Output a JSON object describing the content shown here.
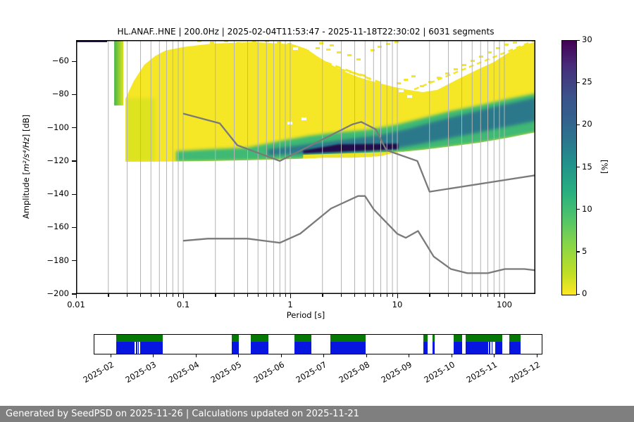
{
  "title": "HL.ANAF..HNE | 200.0Hz | 2025-02-04T11:53:47 - 2025-11-18T22:30:02 | 6031 segments",
  "station": {
    "stream_id": "HL.ANAF..HNE",
    "sampling_rate": "200.0Hz",
    "start_time": "2025-02-04T11:53:47",
    "end_time": "2025-11-18T22:30:02",
    "segments_count": "6031 segments"
  },
  "axes": {
    "x": {
      "label": "Period [s]",
      "scale": "log",
      "tick_values": [
        0.01,
        0.1,
        1,
        10,
        100
      ],
      "tick_labels": [
        "0.01",
        "0.1",
        "1",
        "10",
        "100"
      ],
      "range": [
        0.01,
        195
      ]
    },
    "y": {
      "label_prefix": "Amplitude [",
      "label_math": "m²/s⁴/Hz",
      "label_suffix": "] [dB]",
      "tick_values": [
        -60,
        -80,
        -100,
        -120,
        -140,
        -160,
        -180,
        -200
      ],
      "tick_labels": [
        "−60",
        "−80",
        "−100",
        "−120",
        "−140",
        "−160",
        "−180",
        "−200"
      ],
      "range": [
        -200,
        -47
      ]
    }
  },
  "colorbar": {
    "unit": "[%]",
    "min": 0,
    "max": 30,
    "colormap": "viridis_r",
    "tick_values": [
      0,
      5,
      10,
      15,
      20,
      25,
      30
    ],
    "tick_labels": [
      "0",
      "5",
      "10",
      "15",
      "20",
      "25",
      "30"
    ]
  },
  "colors": {
    "heat_yellow": "#f5e626",
    "heat_lightgreen": "#cfe11d",
    "heat_green": "#35b779",
    "heat_teal": "#2c728e",
    "heat_core": "#23094c",
    "stripe_green": "#45b649",
    "noise_model_gray": "#7a7a7a",
    "grid_gray": "#b3b3b3",
    "timeline_green": "#067806",
    "timeline_blue": "#0715e0",
    "footer_gray": "#7f7f7f"
  },
  "chart_data": {
    "type": "heatmap",
    "title": "HL.ANAF..HNE | 200.0Hz | 2025-02-04T11:53:47 - 2025-11-18T22:30:02 | 6031 segments",
    "xlabel": "Period [s]",
    "ylabel": "Amplitude [m²/s⁴/Hz] [dB]",
    "x_scale": "log",
    "xlim": [
      0.01,
      195
    ],
    "ylim": [
      -200,
      -47
    ],
    "colorbar": {
      "label": "[%]",
      "min": 0,
      "max": 30,
      "ticks": [
        0,
        5,
        10,
        15,
        20,
        25,
        30
      ]
    },
    "grid": "vertical-log-minor-and-major",
    "density": {
      "description": "PPSD probability density: broad low-probability (yellow, <5%) field between roughly -47 and -120 dB; probability increases (green to teal) in a band that follows the lower envelope, peaking (dark purple, ~30%) near periods 1.3-10 s at about -110 to -115 dB; distribution envelope rises toward shorter and longer periods.",
      "upper_edge": [
        [
          0.0289,
          -82.4
        ],
        [
          0.0347,
          -71.8
        ],
        [
          0.0434,
          -62.1
        ],
        [
          0.0544,
          -57.0
        ],
        [
          0.0682,
          -53.6
        ],
        [
          0.1,
          -51.5
        ],
        [
          0.184,
          -49.4
        ],
        [
          0.455,
          -48.5
        ],
        [
          1.06,
          -49.8
        ],
        [
          1.43,
          -52.7
        ],
        [
          1.78,
          -57.0
        ],
        [
          2.41,
          -62.1
        ],
        [
          3.23,
          -66.3
        ],
        [
          4.41,
          -69.7
        ],
        [
          5.95,
          -72.2
        ],
        [
          9.43,
          -75.6
        ],
        [
          12.8,
          -77.3
        ],
        [
          17.3,
          -78.6
        ],
        [
          23.5,
          -77.3
        ],
        [
          37.3,
          -70.6
        ],
        [
          54.6,
          -65.4
        ],
        [
          80.1,
          -60.4
        ],
        [
          117,
          -53.6
        ],
        [
          159,
          -49.8
        ],
        [
          196,
          -48.5
        ]
      ],
      "lower_edge": [
        [
          0.0289,
          -120.5
        ],
        [
          0.086,
          -120.3
        ],
        [
          0.184,
          -120.0
        ],
        [
          0.392,
          -119.6
        ],
        [
          0.617,
          -119.2
        ],
        [
          1.13,
          -118.8
        ],
        [
          2.07,
          -118.0
        ],
        [
          3.81,
          -118.0
        ],
        [
          6.94,
          -117.1
        ],
        [
          9.43,
          -115.0
        ],
        [
          17.3,
          -113.3
        ],
        [
          31.7,
          -111.2
        ],
        [
          58.3,
          -109.0
        ],
        [
          107,
          -106.1
        ],
        [
          196,
          -102.7
        ]
      ],
      "green_band_upper": [
        [
          0.086,
          -114.1
        ],
        [
          0.184,
          -112.9
        ],
        [
          0.392,
          -112.0
        ],
        [
          0.836,
          -107.8
        ],
        [
          1.53,
          -104.8
        ],
        [
          2.81,
          -102.7
        ],
        [
          5.13,
          -101.4
        ],
        [
          9.43,
          -98.5
        ],
        [
          17.3,
          -94.2
        ],
        [
          31.7,
          -90.0
        ],
        [
          58.3,
          -86.6
        ],
        [
          107,
          -82.8
        ],
        [
          196,
          -79.4
        ]
      ],
      "green_band_lower": [
        [
          196,
          -102.7
        ],
        [
          107,
          -106.1
        ],
        [
          58.3,
          -109.0
        ],
        [
          31.7,
          -111.2
        ],
        [
          17.3,
          -113.3
        ],
        [
          9.43,
          -115.0
        ],
        [
          6.94,
          -117.1
        ],
        [
          3.81,
          -118.0
        ],
        [
          2.07,
          -118.0
        ],
        [
          1.13,
          -118.8
        ],
        [
          0.617,
          -119.2
        ],
        [
          0.392,
          -119.6
        ],
        [
          0.184,
          -120.0
        ],
        [
          0.086,
          -120.3
        ]
      ],
      "teal_band_upper": [
        [
          0.617,
          -112.9
        ],
        [
          1.13,
          -110.8
        ],
        [
          2.07,
          -108.7
        ],
        [
          3.81,
          -106.5
        ],
        [
          6.94,
          -104.4
        ],
        [
          12.8,
          -100.6
        ],
        [
          23.5,
          -95.9
        ],
        [
          43.2,
          -91.7
        ],
        [
          80.1,
          -87.5
        ],
        [
          148,
          -83.7
        ],
        [
          196,
          -82.0
        ]
      ],
      "teal_band_lower": [
        [
          196,
          -95.9
        ],
        [
          107,
          -99.3
        ],
        [
          58.3,
          -102.7
        ],
        [
          31.7,
          -106.1
        ],
        [
          17.3,
          -109.5
        ],
        [
          9.43,
          -112.5
        ],
        [
          5.13,
          -114.1
        ],
        [
          2.81,
          -115.0
        ],
        [
          1.53,
          -115.4
        ],
        [
          0.836,
          -116.2
        ],
        [
          0.617,
          -116.7
        ]
      ],
      "yellow_fringe": [
        [
          1.32,
          -116.3
        ],
        [
          11.0,
          -114.3
        ],
        [
          11.0,
          -117.8
        ],
        [
          1.32,
          -119.6
        ]
      ],
      "dark_core_max_density": [
        [
          1.32,
          -113.7
        ],
        [
          2.41,
          -110.8
        ],
        [
          2.81,
          -110.0
        ],
        [
          10.2,
          -109.6
        ],
        [
          10.2,
          -112.9
        ],
        [
          3.81,
          -114.1
        ],
        [
          1.32,
          -115.4
        ]
      ],
      "left_green_stripe": {
        "t0": 0.0227,
        "t1": 0.0276,
        "db_top": -47.3,
        "db_bottom": -86.6
      },
      "top_left_dark_bar": {
        "t0": 0.01,
        "t1": 0.0195,
        "db": -47.3
      },
      "left_tinge": {
        "t0": 0.0289,
        "t1": 0.0544,
        "db_top": -82.4,
        "db_bottom": -120.3
      }
    },
    "noise_models": {
      "name": "Peterson NHNM / NLNM (gray reference curves)",
      "nhnm": [
        [
          0.1,
          -91.5
        ],
        [
          0.22,
          -97.4
        ],
        [
          0.32,
          -110.5
        ],
        [
          0.8,
          -120.0
        ],
        [
          3.8,
          -98.0
        ],
        [
          4.6,
          -96.5
        ],
        [
          6.3,
          -101.0
        ],
        [
          7.9,
          -113.5
        ],
        [
          15.4,
          -120.0
        ],
        [
          20.0,
          -138.5
        ],
        [
          354.8,
          -126.0
        ]
      ],
      "nlnm": [
        [
          0.1,
          -168.0
        ],
        [
          0.17,
          -166.7
        ],
        [
          0.4,
          -166.7
        ],
        [
          0.8,
          -169.2
        ],
        [
          1.24,
          -163.7
        ],
        [
          2.4,
          -148.6
        ],
        [
          4.3,
          -141.1
        ],
        [
          5.0,
          -141.1
        ],
        [
          6.0,
          -149.0
        ],
        [
          10.0,
          -163.8
        ],
        [
          12.0,
          -166.2
        ],
        [
          15.6,
          -162.1
        ],
        [
          21.9,
          -177.5
        ],
        [
          31.6,
          -185.0
        ],
        [
          45.0,
          -187.5
        ],
        [
          70.0,
          -187.5
        ],
        [
          101.0,
          -185.0
        ],
        [
          154.0,
          -185.0
        ],
        [
          328.0,
          -187.5
        ]
      ]
    },
    "availability_timeline": {
      "months": [
        "2025-02",
        "2025-03",
        "2025-04",
        "2025-05",
        "2025-06",
        "2025-07",
        "2025-08",
        "2025-09",
        "2025-10",
        "2025-11",
        "2025-12"
      ],
      "note": "green = PSD coverage, blue = waveform data; positions are % of bar width, dates approximate",
      "segments": [
        {
          "f0": 4.88,
          "f1": 15.28,
          "approx_dates": "2025-02-04 to 2025-03-09"
        },
        {
          "f0": 30.71,
          "f1": 32.28,
          "approx_dates": "2025-04-26 to 2025-05-01"
        },
        {
          "f0": 34.96,
          "f1": 38.9,
          "approx_dates": "2025-05-10 to 2025-05-22"
        },
        {
          "f0": 44.72,
          "f1": 48.82,
          "approx_dates": "2025-06-09 to 2025-06-22"
        },
        {
          "f0": 52.76,
          "f1": 60.63,
          "approx_dates": "2025-07-05 to 2025-07-30"
        },
        {
          "f0": 73.54,
          "f1": 74.49,
          "approx_dates": "2025-09-08 to 2025-09-11"
        },
        {
          "f0": 75.59,
          "f1": 76.06,
          "approx_dates": "2025-09-15 to 2025-09-16"
        },
        {
          "f0": 80.31,
          "f1": 82.2,
          "approx_dates": "2025-09-29 to 2025-10-05"
        },
        {
          "f0": 82.99,
          "f1": 91.18,
          "approx_dates": "2025-10-08 to 2025-11-03"
        },
        {
          "f0": 92.76,
          "f1": 95.2,
          "approx_dates": "2025-11-08 to 2025-11-18"
        }
      ],
      "gaps_slits": [
        {
          "at": 8.98,
          "full_height": false
        },
        {
          "at": 9.53,
          "full_height": false
        },
        {
          "at": 9.92,
          "full_height": false
        },
        {
          "at": 48.5,
          "full_height": true
        },
        {
          "at": 88.0,
          "full_height": false
        },
        {
          "at": 88.5,
          "full_height": false
        },
        {
          "at": 88.97,
          "full_height": false
        },
        {
          "at": 89.37,
          "full_height": false
        }
      ]
    }
  },
  "footer": {
    "text": "Generated by SeedPSD on 2025-11-26 | Calculations updated on 2025-11-21"
  }
}
